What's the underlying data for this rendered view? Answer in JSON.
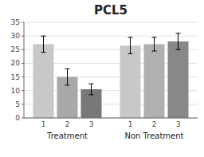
{
  "chart_data": {
    "type": "bar",
    "title": "PCL5",
    "categories": [
      "Treatment",
      "Non Treatment"
    ],
    "series": [
      {
        "name": "1",
        "colors": [
          "#c8c8c8",
          "#c8c8c8"
        ],
        "values": [
          27,
          26.5
        ],
        "errors": [
          3,
          3
        ]
      },
      {
        "name": "2",
        "colors": [
          "#a8a8a8",
          "#b0b0b0"
        ],
        "values": [
          15,
          27
        ],
        "errors": [
          3,
          2.5
        ]
      },
      {
        "name": "3",
        "colors": [
          "#787878",
          "#888888"
        ],
        "values": [
          10.5,
          28
        ],
        "errors": [
          2,
          3
        ]
      }
    ],
    "ylim": [
      0,
      35
    ],
    "yticks": [
      0,
      5,
      10,
      15,
      20,
      25,
      30,
      35
    ],
    "grid": true
  }
}
